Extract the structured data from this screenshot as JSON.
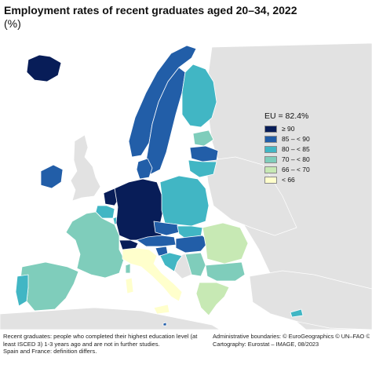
{
  "title": "Employment rates of recent graduates aged 20–34, 2022",
  "unit": "(%)",
  "colors": {
    "background_sea": "#ffffff",
    "non_eu_land": "#e2e2e2",
    "border": "#ffffff",
    "c90": "#081d58",
    "c85": "#225ea8",
    "c80": "#41b6c4",
    "c70": "#7fcdbb",
    "c66": "#c7e9b4",
    "clt66": "#ffffcc"
  },
  "legend": {
    "title": "EU = 82.4%",
    "items": [
      {
        "label": "≥ 90",
        "color": "#081d58"
      },
      {
        "label": "85 – < 90",
        "color": "#225ea8"
      },
      {
        "label": "80 – < 85",
        "color": "#41b6c4"
      },
      {
        "label": "70 – < 80",
        "color": "#7fcdbb"
      },
      {
        "label": "66 – < 70",
        "color": "#c7e9b4"
      },
      {
        "label": "< 66",
        "color": "#ffffcc"
      }
    ]
  },
  "map_classes": {
    "iceland": "≥ 90",
    "norway": "85 – < 90",
    "sweden": "85 – < 90",
    "finland": "80 – < 85",
    "estonia": "70 – < 80",
    "latvia": "85 – < 90",
    "lithuania": "80 – < 85",
    "denmark": "85 – < 90",
    "ireland": "85 – < 90",
    "netherlands": "≥ 90",
    "belgium": "80 – < 85",
    "luxembourg": "80 – < 85",
    "germany": "≥ 90",
    "poland": "80 – < 85",
    "czechia": "85 – < 90",
    "slovakia": "80 – < 85",
    "austria": "85 – < 90",
    "switzerland": "≥ 90",
    "hungary": "85 – < 90",
    "slovenia": "85 – < 90",
    "croatia": "80 – < 85",
    "france": "70 – < 80",
    "spain": "70 – < 80",
    "portugal": "80 – < 85",
    "italy": "< 66",
    "romania": "66 – < 70",
    "bulgaria": "70 – < 80",
    "greece": "66 – < 70",
    "serbia": "70 – < 80",
    "cyprus": "80 – < 85",
    "malta": "85 – < 90"
  },
  "footnotes_left": [
    "Recent graduates: people who completed their highest education level (at",
    "least ISCED 3) 1-3 years ago and are not in further studies.",
    "Spain and France: definition differs."
  ],
  "footnotes_right": [
    "Administrative boundaries: © EuroGeographics © UN–FAO © Turkstat",
    "Cartography: Eurostat – IMAGE, 08/2023"
  ]
}
